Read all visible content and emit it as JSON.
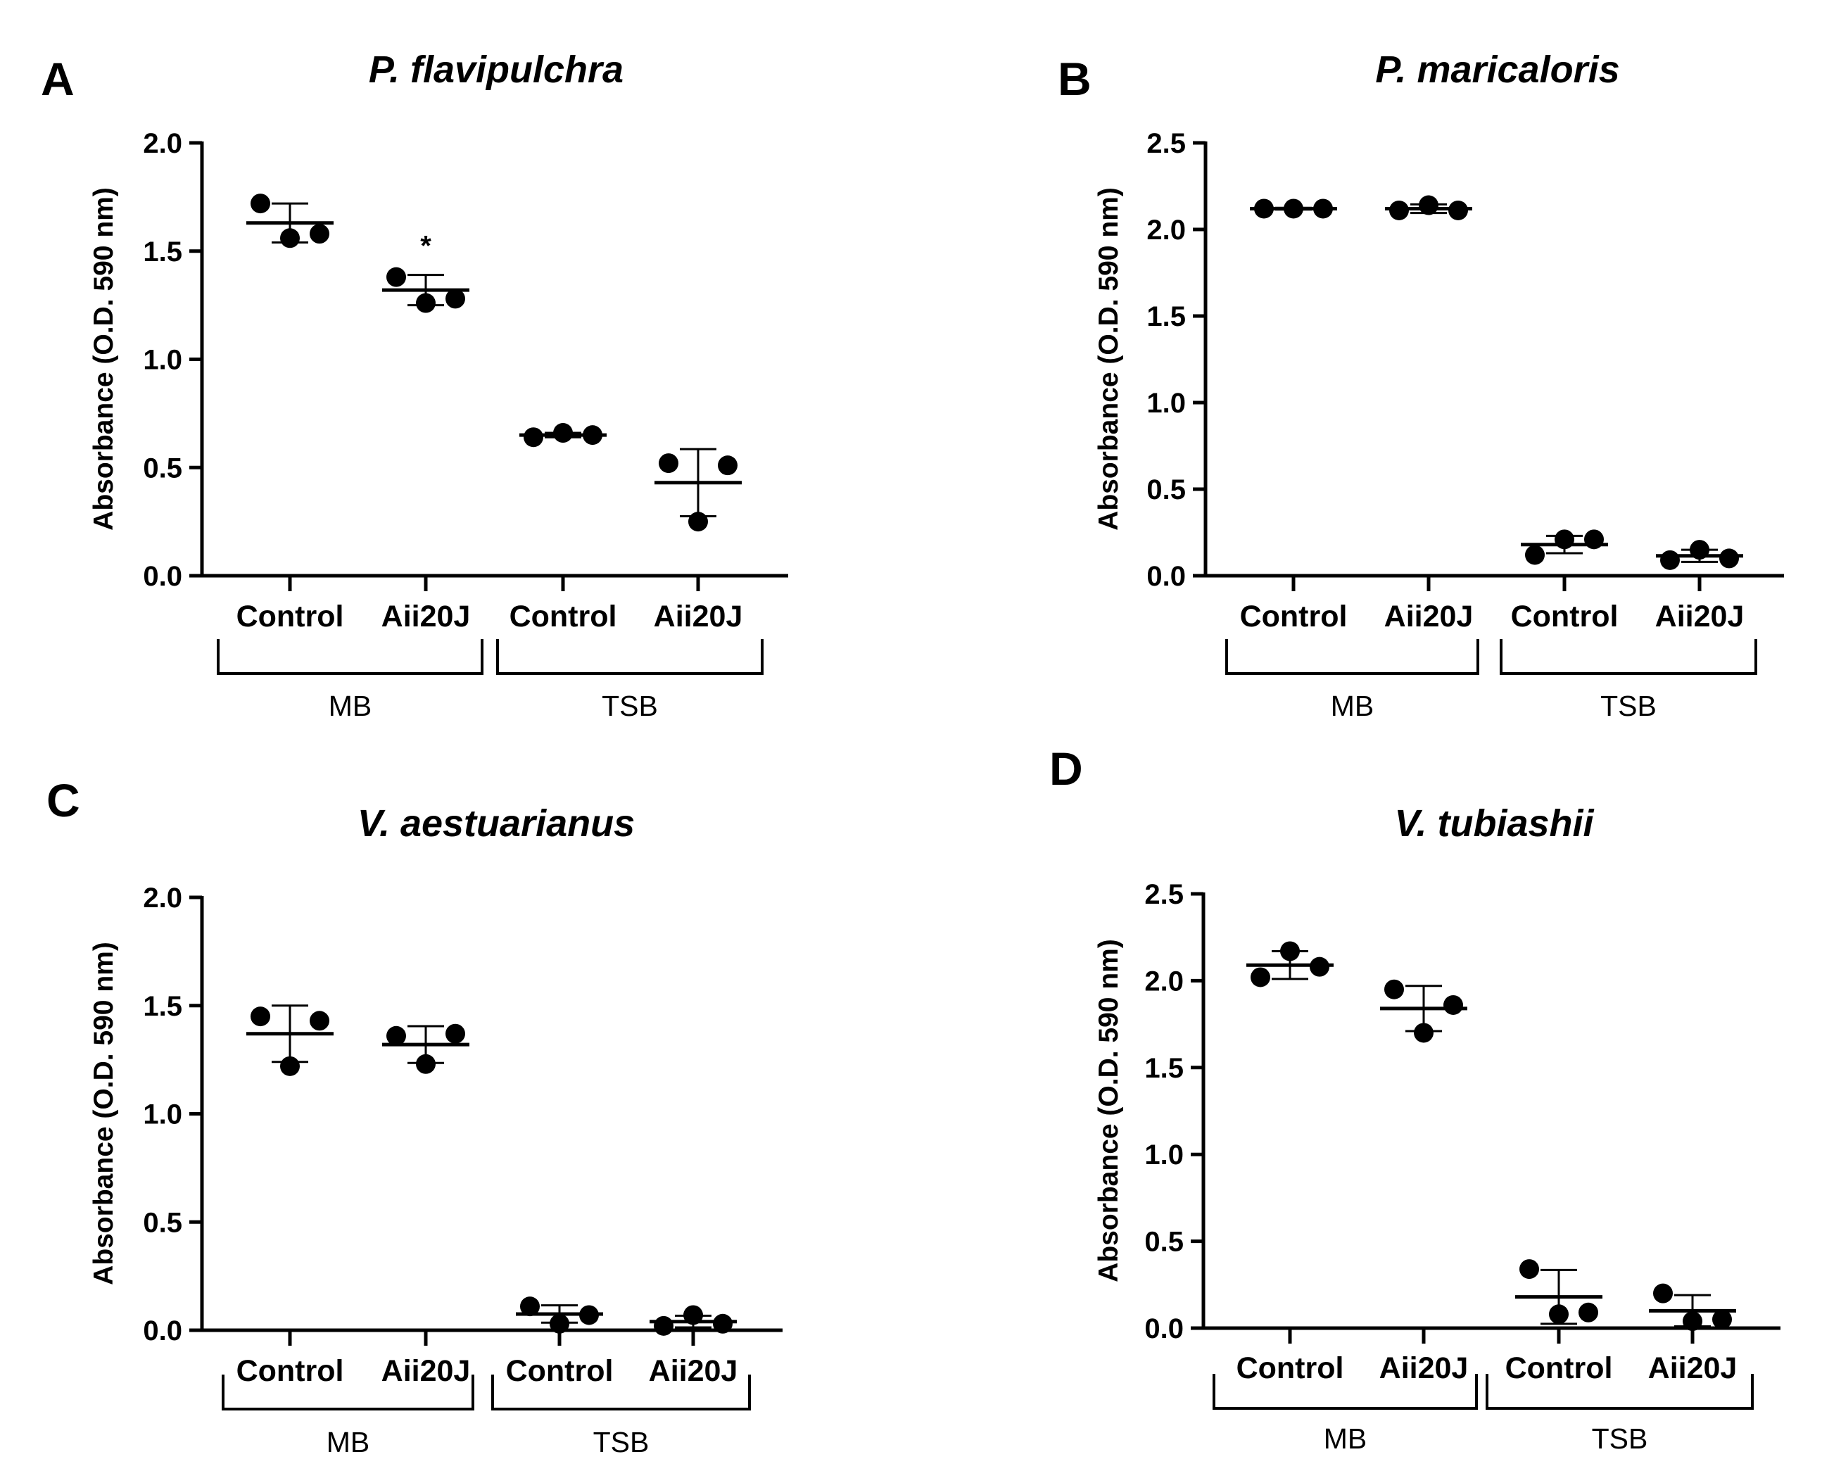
{
  "figure": {
    "colors": {
      "ink": "#000000",
      "background": "#ffffff"
    }
  },
  "chart_data": [
    {
      "panel": "A",
      "type": "scatter",
      "title": "P. flavipulchra",
      "ylabel": "Absorbance (O.D. 590 nm)",
      "xlabel": "",
      "ylim": [
        0,
        2.0
      ],
      "yticks": [
        0.0,
        0.5,
        1.0,
        1.5,
        2.0
      ],
      "ytick_labels": [
        "0.0",
        "0.5",
        "1.0",
        "1.5",
        "2.0"
      ],
      "categories": [
        "Control",
        "Aii20J",
        "Control",
        "Aii20J"
      ],
      "groups": [
        {
          "label": "MB",
          "categories": [
            0,
            1
          ]
        },
        {
          "label": "TSB",
          "categories": [
            2,
            3
          ]
        }
      ],
      "points": [
        [
          1.72,
          1.56,
          1.58
        ],
        [
          1.38,
          1.26,
          1.28
        ],
        [
          0.64,
          0.66,
          0.65
        ],
        [
          0.52,
          0.25,
          0.51
        ]
      ],
      "mean": [
        1.63,
        1.32,
        0.65,
        0.43
      ],
      "sd": [
        0.09,
        0.07,
        0.01,
        0.155
      ],
      "annotations": [
        {
          "category": 1,
          "text": "*"
        }
      ]
    },
    {
      "panel": "B",
      "type": "scatter",
      "title": "P. maricaloris",
      "ylabel": "Absorbance (O.D. 590 nm)",
      "xlabel": "",
      "ylim": [
        0,
        2.5
      ],
      "yticks": [
        0.0,
        0.5,
        1.0,
        1.5,
        2.0,
        2.5
      ],
      "ytick_labels": [
        "0.0",
        "0.5",
        "1.0",
        "1.5",
        "2.0",
        "2.5"
      ],
      "categories": [
        "Control",
        "Aii20J",
        "Control",
        "Aii20J"
      ],
      "groups": [
        {
          "label": "MB",
          "categories": [
            0,
            1
          ]
        },
        {
          "label": "TSB",
          "categories": [
            2,
            3
          ]
        }
      ],
      "points": [
        [
          2.12,
          2.12,
          2.12
        ],
        [
          2.11,
          2.14,
          2.11
        ],
        [
          0.12,
          0.21,
          0.21
        ],
        [
          0.09,
          0.15,
          0.1
        ]
      ],
      "mean": [
        2.12,
        2.12,
        0.18,
        0.115
      ],
      "sd": [
        0.005,
        0.025,
        0.05,
        0.035
      ],
      "annotations": []
    },
    {
      "panel": "C",
      "type": "scatter",
      "title": "V. aestuarianus",
      "ylabel": "Absorbance (O.D. 590 nm)",
      "xlabel": "",
      "ylim": [
        0,
        2.0
      ],
      "yticks": [
        0.0,
        0.5,
        1.0,
        1.5,
        2.0
      ],
      "ytick_labels": [
        "0.0",
        "0.5",
        "1.0",
        "1.5",
        "2.0"
      ],
      "categories": [
        "Control",
        "Aii20J",
        "Control",
        "Aii20J"
      ],
      "groups": [
        {
          "label": "MB",
          "categories": [
            0,
            1
          ]
        },
        {
          "label": "TSB",
          "categories": [
            2,
            3
          ]
        }
      ],
      "points": [
        [
          1.45,
          1.22,
          1.43
        ],
        [
          1.36,
          1.23,
          1.37
        ],
        [
          0.11,
          0.03,
          0.07
        ],
        [
          0.02,
          0.07,
          0.03
        ]
      ],
      "mean": [
        1.37,
        1.32,
        0.075,
        0.04
      ],
      "sd": [
        0.13,
        0.085,
        0.04,
        0.027
      ],
      "annotations": []
    },
    {
      "panel": "D",
      "type": "scatter",
      "title": "V. tubiashii",
      "ylabel": "Absorbance (O.D. 590 nm)",
      "xlabel": "",
      "ylim": [
        0,
        2.5
      ],
      "yticks": [
        0.0,
        0.5,
        1.0,
        1.5,
        2.0,
        2.5
      ],
      "ytick_labels": [
        "0.0",
        "0.5",
        "1.0",
        "1.5",
        "2.0",
        "2.5"
      ],
      "categories": [
        "Control",
        "Aii20J",
        "Control",
        "Aii20J"
      ],
      "groups": [
        {
          "label": "MB",
          "categories": [
            0,
            1
          ]
        },
        {
          "label": "TSB",
          "categories": [
            2,
            3
          ]
        }
      ],
      "points": [
        [
          2.02,
          2.17,
          2.08
        ],
        [
          1.95,
          1.7,
          1.86
        ],
        [
          0.34,
          0.08,
          0.09
        ],
        [
          0.2,
          0.04,
          0.05
        ]
      ],
      "mean": [
        2.09,
        1.84,
        0.18,
        0.1
      ],
      "sd": [
        0.08,
        0.13,
        0.155,
        0.09
      ],
      "annotations": []
    }
  ]
}
